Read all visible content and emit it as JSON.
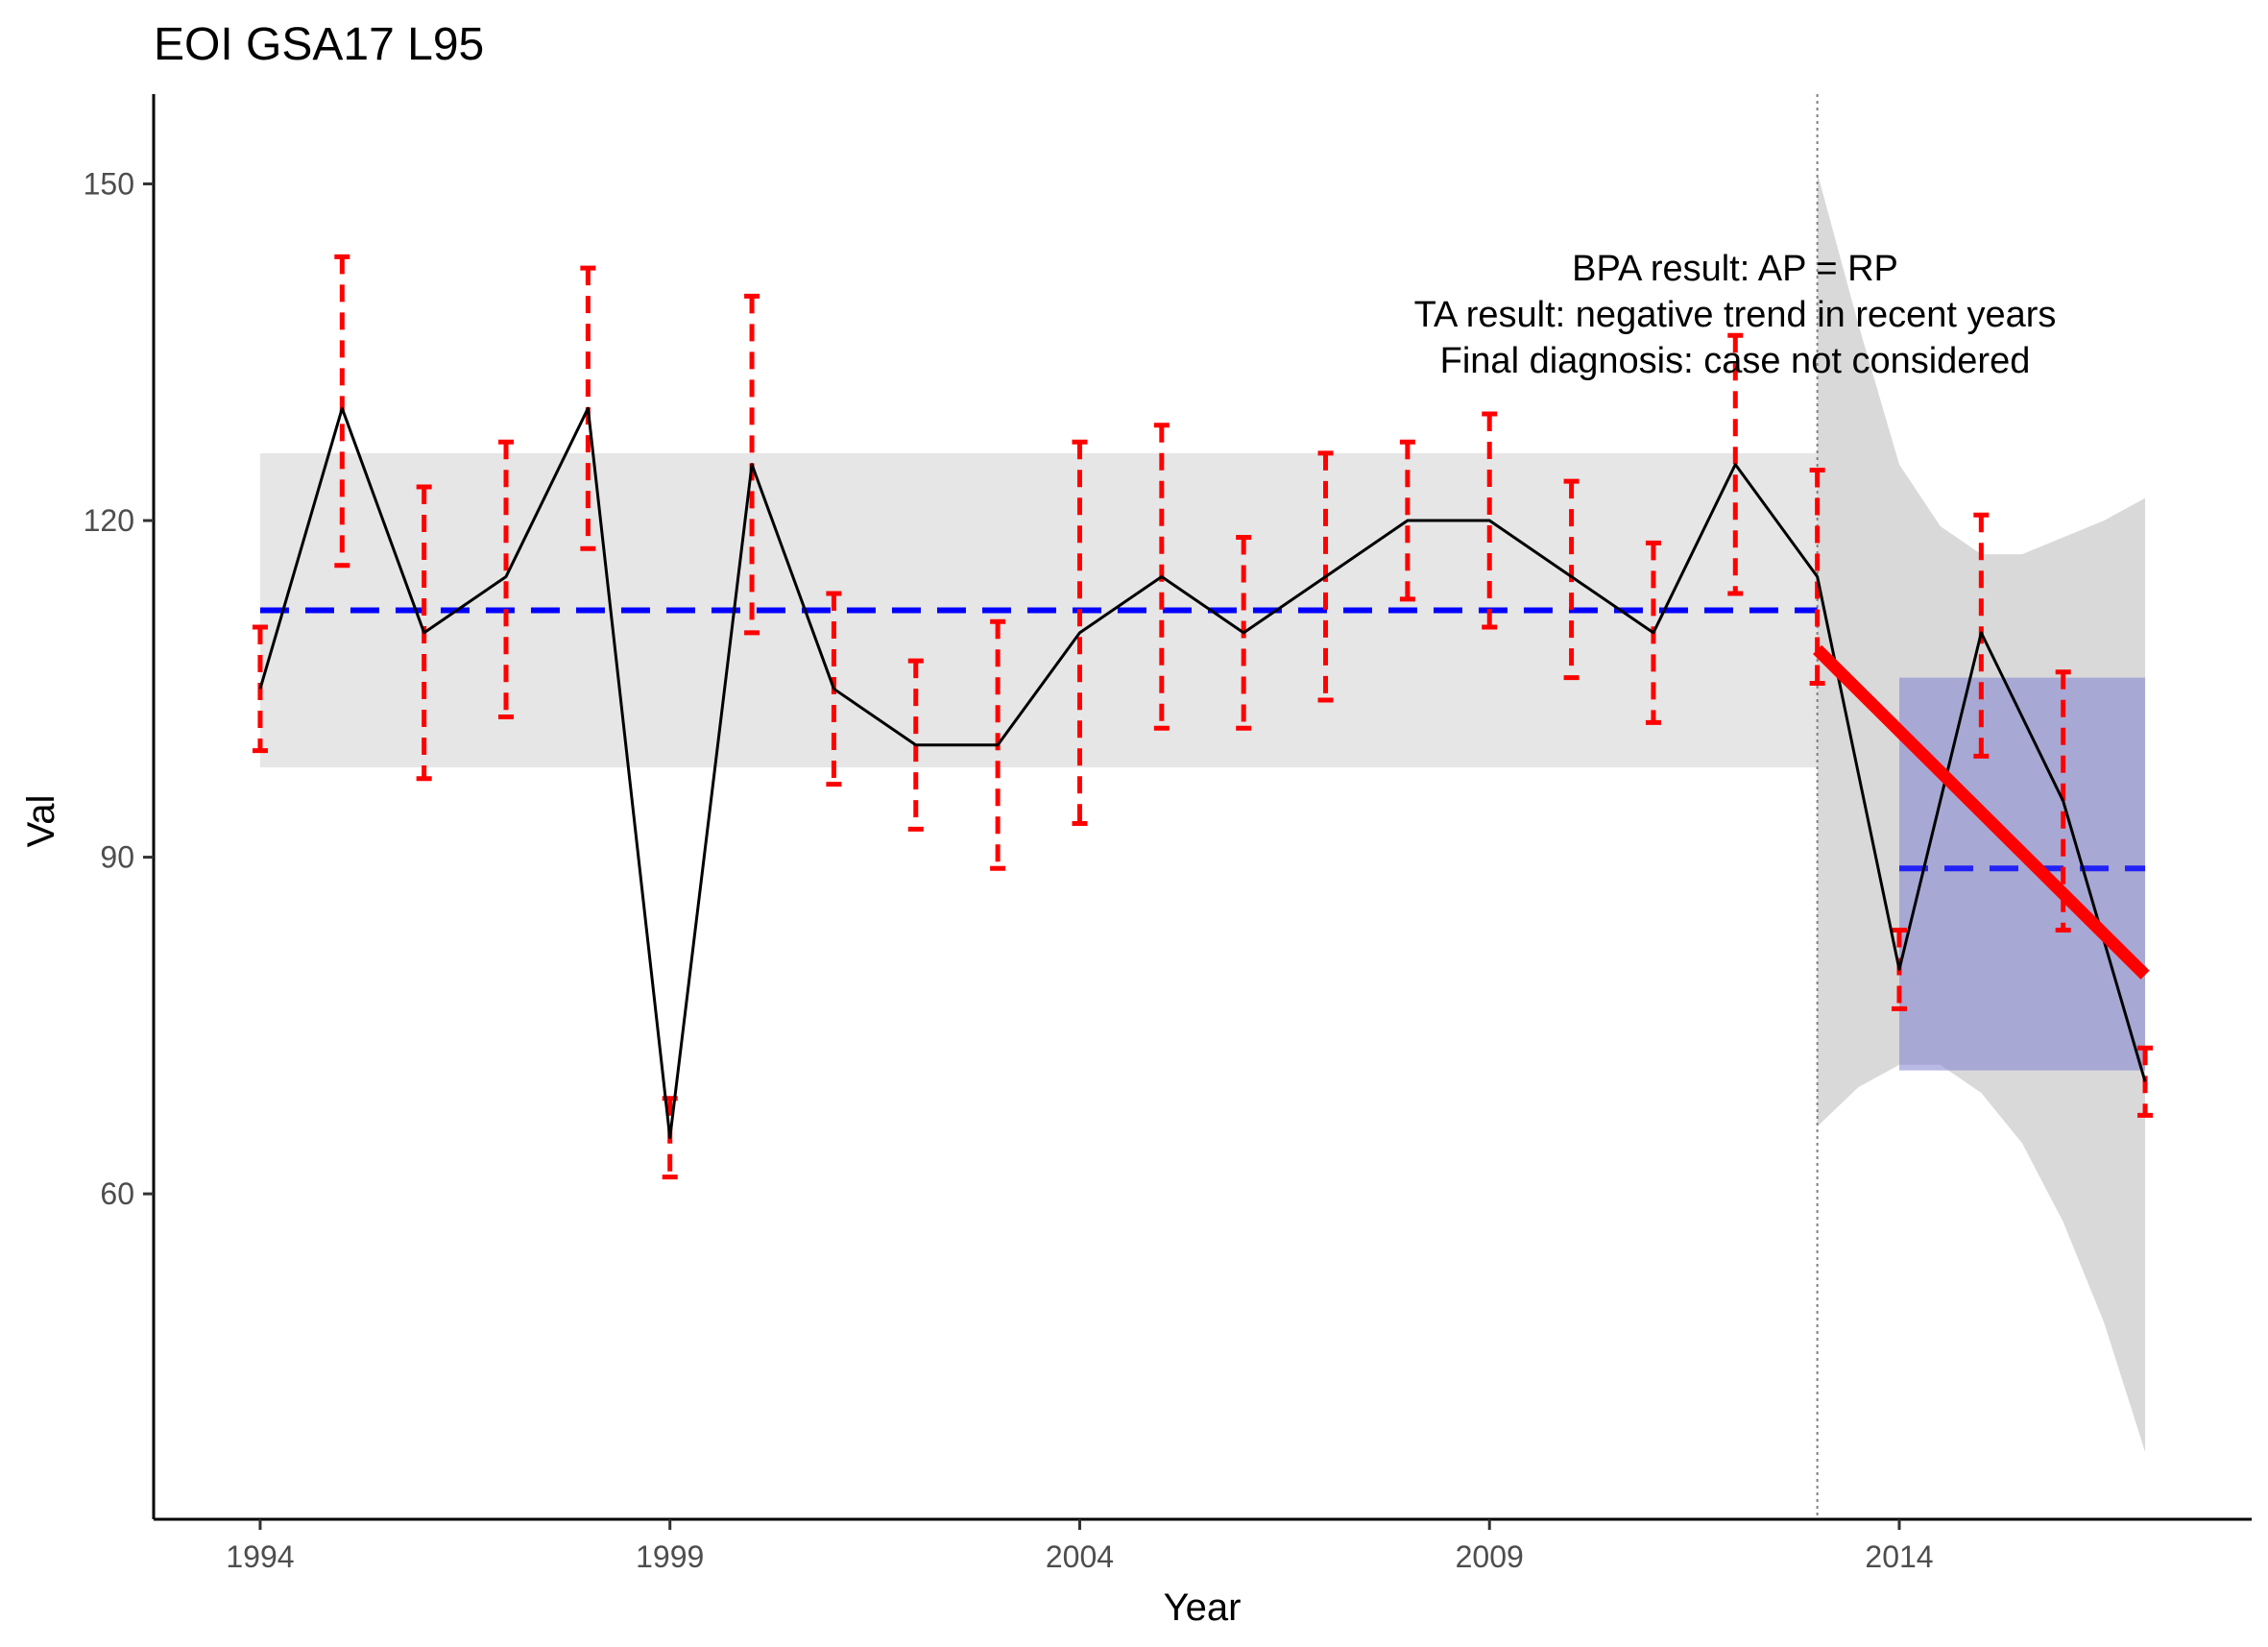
{
  "chart_data": {
    "type": "line",
    "title": "EOI GSA17 L95",
    "xlabel": "Year",
    "ylabel": "Val",
    "xlim": [
      1992.7,
      2018.3
    ],
    "ylim": [
      31,
      158
    ],
    "x_ticks": [
      1994,
      1999,
      2004,
      2009,
      2014
    ],
    "y_ticks": [
      60,
      90,
      120,
      150
    ],
    "grid": false,
    "annotation_lines": [
      "BPA result: AP = RP",
      "TA result: negative trend in recent years",
      "Final diagnosis: case not considered"
    ],
    "series": [
      {
        "type": "line",
        "x": [
          1994,
          1995,
          1996,
          1997,
          1998,
          1999,
          2000,
          2001,
          2002,
          2003,
          2004,
          2005,
          2006,
          2007,
          2008,
          2009,
          2010,
          2011,
          2012,
          2013,
          2014,
          2015,
          2016,
          2017
        ],
        "y": [
          105,
          130,
          110,
          115,
          130,
          65,
          125,
          105,
          100,
          100,
          110,
          115,
          110,
          115,
          120,
          120,
          115,
          110,
          125,
          115,
          80,
          110,
          95,
          70
        ],
        "color": "#000000"
      }
    ],
    "error_bars": {
      "color": "#ff0000",
      "x": [
        1994,
        1995,
        1996,
        1997,
        1998,
        1999,
        2000,
        2001,
        2002,
        2003,
        2004,
        2005,
        2006,
        2007,
        2008,
        2009,
        2010,
        2011,
        2012,
        2013,
        2014,
        2015,
        2016,
        2017
      ],
      "low": [
        99.5,
        116,
        97,
        102.5,
        117.5,
        61.5,
        110,
        96.5,
        92.5,
        89,
        93,
        101.5,
        101.5,
        104,
        113,
        110.5,
        106,
        102,
        113.5,
        105.5,
        76.5,
        99,
        83.5,
        67
      ],
      "high": [
        110.5,
        143.5,
        123,
        127,
        142.5,
        68.5,
        140,
        113.5,
        107.5,
        111,
        127,
        128.5,
        118.5,
        126,
        127,
        129.5,
        123.5,
        118,
        136.5,
        124.5,
        83.5,
        120.5,
        106.5,
        73
      ]
    },
    "reference_period": {
      "x_range": [
        1994,
        2013
      ],
      "band": [
        98,
        126
      ],
      "mean": 112,
      "band_color": "#e6e6e6",
      "mean_color": "#0000ff"
    },
    "assessment_period": {
      "x_range": [
        2014,
        2017
      ],
      "band": [
        71,
        106
      ],
      "mean": 89,
      "band_color": "#7f7fd0",
      "mean_color": "#0000ff"
    },
    "divider_x": 2013,
    "trend": {
      "color": "#ff0000",
      "x": [
        2013,
        2017
      ],
      "y": [
        108.5,
        79.5
      ],
      "ci_x": [
        2013,
        2013.5,
        2014,
        2014.5,
        2015,
        2015.5,
        2016,
        2016.5,
        2017
      ],
      "ci_low": [
        66,
        69.5,
        71.5,
        71.5,
        69,
        64.5,
        57.5,
        48.5,
        37
      ],
      "ci_high": [
        151,
        137.5,
        125,
        119.5,
        117,
        117,
        118.5,
        120,
        122
      ],
      "ci_color": "#d9d9d9"
    }
  }
}
